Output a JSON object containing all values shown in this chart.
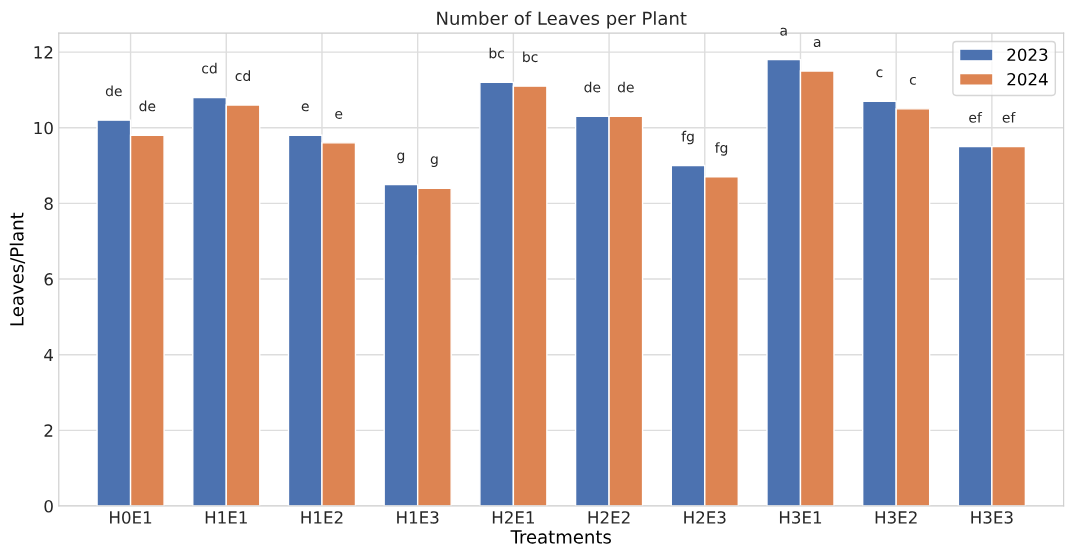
{
  "chart_data": {
    "type": "bar",
    "title": "Number of Leaves per Plant",
    "xlabel": "Treatments",
    "ylabel": "Leaves/Plant",
    "categories": [
      "H0E1",
      "H1E1",
      "H1E2",
      "H1E3",
      "H2E1",
      "H2E2",
      "H2E3",
      "H3E1",
      "H3E2",
      "H3E3"
    ],
    "series": [
      {
        "name": "2023",
        "color": "#4c72b0",
        "values": [
          10.2,
          10.8,
          9.8,
          8.5,
          11.2,
          10.3,
          9.0,
          11.8,
          10.7,
          9.5
        ],
        "value_labels": [
          "de",
          "cd",
          "e",
          "g",
          "bc",
          "de",
          "fg",
          "a",
          "c",
          "ef"
        ]
      },
      {
        "name": "2024",
        "color": "#dd8452",
        "values": [
          9.8,
          10.6,
          9.6,
          8.4,
          11.1,
          10.3,
          8.7,
          11.5,
          10.5,
          9.5
        ],
        "value_labels": [
          "de",
          "cd",
          "e",
          "g",
          "bc",
          "de",
          "fg",
          "a",
          "c",
          "ef"
        ]
      }
    ],
    "ylim": [
      0,
      12.5
    ],
    "yticks": [
      0,
      2,
      4,
      6,
      8,
      10,
      12
    ],
    "grid": true,
    "legend": "top right"
  }
}
